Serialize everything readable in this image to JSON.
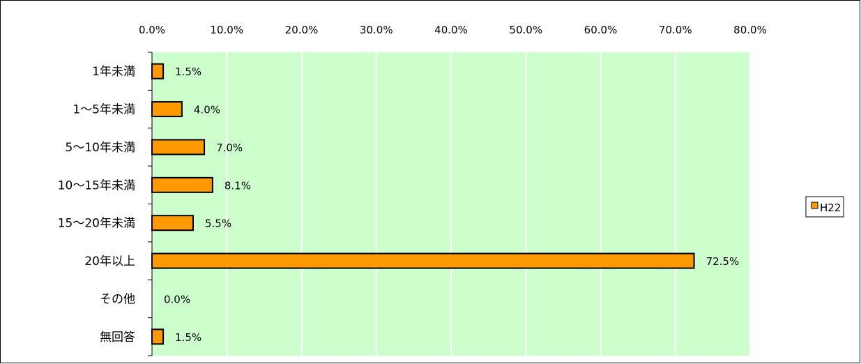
{
  "chart_data": {
    "type": "bar",
    "orientation": "horizontal",
    "categories": [
      "1年未満",
      "1～5年未満",
      "5～10年未満",
      "10～15年未満",
      "15～20年未満",
      "20年以上",
      "その他",
      "無回答"
    ],
    "series": [
      {
        "name": "H22",
        "values": [
          1.5,
          4.0,
          7.0,
          8.1,
          5.5,
          72.5,
          0.0,
          1.5
        ],
        "labels": [
          "1.5%",
          "4.0%",
          "7.0%",
          "8.1%",
          "5.5%",
          "72.5%",
          "0.0%",
          "1.5%"
        ],
        "color": "#ff9900"
      }
    ],
    "xlim": [
      0,
      80
    ],
    "xticks": [
      0,
      10,
      20,
      30,
      40,
      50,
      60,
      70,
      80
    ],
    "xtick_labels": [
      "0.0%",
      "10.0%",
      "20.0%",
      "30.0%",
      "40.0%",
      "50.0%",
      "60.0%",
      "70.0%",
      "80.0%"
    ],
    "x_axis_position": "top",
    "grid": true,
    "plot_background": "#ccffcc",
    "gridline_color": "#ffffff",
    "legend": {
      "position": "right",
      "entries": [
        "H22"
      ]
    }
  }
}
